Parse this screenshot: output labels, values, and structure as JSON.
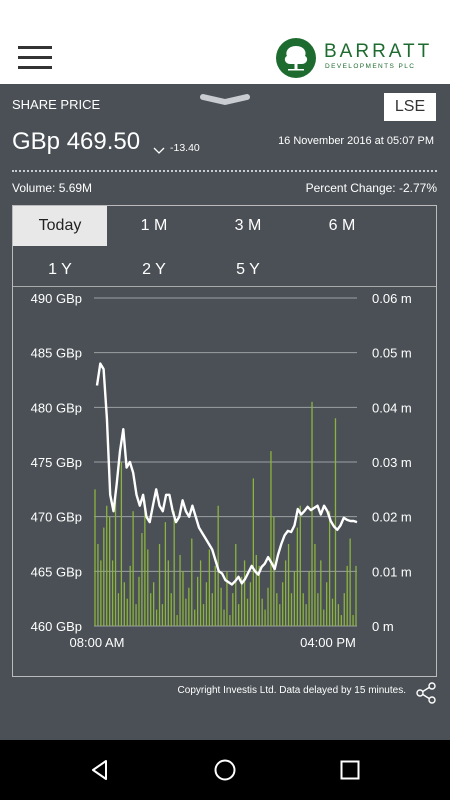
{
  "brand": {
    "name": "BARRATT",
    "sub": "DEVELOPMENTS PLC"
  },
  "quote": {
    "section_title": "SHARE PRICE",
    "exchange": "LSE",
    "price": "GBp 469.50",
    "change": "-13.40",
    "datetime": "16 November 2016 at 05:07 PM",
    "volume": "Volume:  5.69M",
    "percent_change": "Percent Change: -2.77%"
  },
  "tabs": [
    "Today",
    "1 M",
    "3 M",
    "6 M",
    "1 Y",
    "2 Y",
    "5 Y"
  ],
  "active_tab": "Today",
  "footer": {
    "copyright": "Copyright Investis Ltd. Data delayed by 15 minutes."
  },
  "colors": {
    "background": "#4a5055",
    "brand": "#1e6b2f",
    "volume": "#8cb340",
    "line": "#ffffff"
  },
  "icons": [
    "menu-icon",
    "tree-logo-icon",
    "chevron-handle-icon",
    "down-arrow-icon",
    "share-icon",
    "back-icon",
    "home-icon",
    "recents-icon"
  ],
  "chart_data": {
    "type": "line",
    "x_tick_labels": [
      "08:00 AM",
      "04:00 PM"
    ],
    "y_left_ticks": [
      "490 GBp",
      "485 GBp",
      "480 GBp",
      "475 GBp",
      "470 GBp",
      "465 GBp",
      "460 GBp"
    ],
    "y_right_ticks": [
      "0.06 m",
      "0.05 m",
      "0.04 m",
      "0.03 m",
      "0.02 m",
      "0.01 m",
      "0 m"
    ],
    "ylim": [
      460,
      490
    ],
    "y2lim": [
      0,
      0.06
    ],
    "grid": true,
    "series": [
      {
        "values": [
          482,
          484,
          483.5,
          479,
          472,
          470.5,
          473,
          476,
          478,
          474.5,
          475,
          474,
          472,
          471,
          472,
          470,
          469.5,
          471,
          472.5,
          471,
          470.5,
          472,
          472,
          470.5,
          469.5,
          470,
          471.5,
          470.5,
          470,
          471,
          470,
          469,
          468.5,
          468,
          467.5,
          467,
          466,
          465,
          464.8,
          464.2,
          464,
          463.8,
          464.1,
          464.5,
          463.9,
          464.3,
          464.9,
          465.5,
          465,
          464.7,
          465.4,
          465.7,
          466.3,
          465.8,
          465.2,
          466.5,
          467.5,
          468.3,
          468.7,
          468.6,
          469.2,
          470.7,
          470.2,
          470.5,
          470.9,
          470.6,
          470.8,
          471,
          470.2,
          471,
          470.5,
          469.6,
          469.1,
          468.8,
          469.2,
          469.9,
          469.7,
          469.6,
          469.6,
          469.5
        ]
      },
      {
        "name": "Volume",
        "values": [
          0.025,
          0.015,
          0.012,
          0.018,
          0.022,
          0.02,
          0.012,
          0.024,
          0.006,
          0.03,
          0.008,
          0.005,
          0.011,
          0.021,
          0.004,
          0.009,
          0.017,
          0.023,
          0.014,
          0.006,
          0.008,
          0.003,
          0.015,
          0.004,
          0.019,
          0.012,
          0.006,
          0.021,
          0.002,
          0.013,
          0.01,
          0.005,
          0.007,
          0.016,
          0.003,
          0.009,
          0.012,
          0.004,
          0.008,
          0.014,
          0.006,
          0.011,
          0.022,
          0.007,
          0.003,
          0.01,
          0.002,
          0.006,
          0.015,
          0.004,
          0.009,
          0.012,
          0.005,
          0.008,
          0.027,
          0.013,
          0.011,
          0.005,
          0.003,
          0.007,
          0.032,
          0.02,
          0.006,
          0.004,
          0.008,
          0.012,
          0.015,
          0.006,
          0.01,
          0.018,
          0.022,
          0.006,
          0.004,
          0.01,
          0.041,
          0.015,
          0.006,
          0.012,
          0.003,
          0.008,
          0.021,
          0.005,
          0.038,
          0.004,
          0.002,
          0.006,
          0.011,
          0.016,
          0.002,
          0.011
        ]
      }
    ]
  }
}
